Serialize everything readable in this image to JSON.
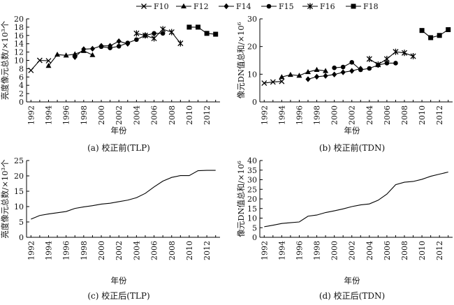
{
  "legend": [
    {
      "name": "F10",
      "marker": "x"
    },
    {
      "name": "F12",
      "marker": "triangle"
    },
    {
      "name": "F14",
      "marker": "diamond"
    },
    {
      "name": "F15",
      "marker": "circle"
    },
    {
      "name": "F16",
      "marker": "star"
    },
    {
      "name": "F18",
      "marker": "square"
    }
  ],
  "chart_data": [
    {
      "type": "line",
      "caption": "(a) 校正前(TLP)",
      "xlabel": "年份",
      "ylabel": "亮度像元总数/×10³个",
      "xlim": [
        1991.5,
        2013.5
      ],
      "ylim": [
        0,
        20
      ],
      "yticks": [
        0,
        2,
        4,
        6,
        8,
        10,
        12,
        14,
        16,
        18,
        20
      ],
      "xticks": [
        1992,
        1994,
        1996,
        1998,
        2000,
        2002,
        2004,
        2006,
        2008,
        2010,
        2012
      ],
      "series": [
        {
          "name": "F10",
          "marker": "x",
          "x": [
            1992,
            1993,
            1994
          ],
          "values": [
            7.6,
            10,
            9.9
          ]
        },
        {
          "name": "F12",
          "marker": "triangle",
          "x": [
            1994,
            1995,
            1996,
            1997,
            1998,
            1999
          ],
          "values": [
            8.7,
            11.4,
            11.2,
            11.5,
            12.3,
            11.3
          ]
        },
        {
          "name": "F14",
          "marker": "diamond",
          "x": [
            1997,
            1998,
            1999,
            2000,
            2001,
            2002,
            2003
          ],
          "values": [
            10.8,
            12.7,
            12.8,
            13.5,
            13.5,
            14.6,
            14.0
          ]
        },
        {
          "name": "F15",
          "marker": "circle",
          "x": [
            2000,
            2001,
            2002,
            2003,
            2004,
            2005,
            2006,
            2007
          ],
          "values": [
            13.3,
            13.0,
            13.4,
            14.2,
            15.0,
            16.0,
            16.5,
            16.5
          ]
        },
        {
          "name": "F16",
          "marker": "star",
          "x": [
            2004,
            2005,
            2006,
            2007,
            2008,
            2009
          ],
          "values": [
            16.5,
            16.0,
            15.3,
            17.5,
            16.8,
            14.1
          ]
        },
        {
          "name": "F18",
          "marker": "square",
          "x": [
            2010,
            2011,
            2012,
            2013
          ],
          "values": [
            18.0,
            18.0,
            16.5,
            16.3
          ]
        }
      ]
    },
    {
      "type": "line",
      "caption": "(b) 校正前(TDN)",
      "xlabel": "年份",
      "ylabel": "像元DN值总和/×10⁶",
      "xlim": [
        1991.5,
        2013.5
      ],
      "ylim": [
        0,
        30
      ],
      "yticks": [
        0,
        10,
        20,
        30
      ],
      "xticks": [
        1992,
        1994,
        1996,
        1998,
        2000,
        2002,
        2004,
        2006,
        2008,
        2010,
        2012
      ],
      "series": [
        {
          "name": "F10",
          "marker": "x",
          "x": [
            1992,
            1993,
            1994
          ],
          "values": [
            6.8,
            7.2,
            7.4
          ]
        },
        {
          "name": "F12",
          "marker": "triangle",
          "x": [
            1994,
            1995,
            1996,
            1997,
            1998,
            1999
          ],
          "values": [
            9.0,
            9.8,
            9.5,
            10.8,
            11.6,
            11.2
          ]
        },
        {
          "name": "F14",
          "marker": "diamond",
          "x": [
            1997,
            1998,
            1999,
            2000,
            2001,
            2002,
            2003
          ],
          "values": [
            8.2,
            9.1,
            9.4,
            9.9,
            10.7,
            11.2,
            12.0
          ]
        },
        {
          "name": "F15",
          "marker": "circle",
          "x": [
            2000,
            2001,
            2002,
            2003,
            2004,
            2005,
            2006,
            2007
          ],
          "values": [
            12.3,
            12.6,
            14.3,
            11.6,
            12.1,
            13.3,
            14.0,
            14.0
          ]
        },
        {
          "name": "F16",
          "marker": "star",
          "x": [
            2004,
            2005,
            2006,
            2007,
            2008,
            2009
          ],
          "values": [
            15.5,
            13.5,
            15.5,
            18.1,
            17.7,
            16.5
          ]
        },
        {
          "name": "F18",
          "marker": "square",
          "x": [
            2010,
            2011,
            2012,
            2013
          ],
          "values": [
            25.8,
            23.2,
            24.0,
            26.1
          ]
        }
      ]
    },
    {
      "type": "line",
      "caption": "(c) 校正后(TLP)",
      "xlabel": "年份",
      "ylabel": "亮度像元总数/×10³个",
      "xlim": [
        1991.5,
        2013.5
      ],
      "ylim": [
        0,
        25
      ],
      "yticks": [
        0,
        5,
        10,
        15,
        20,
        25
      ],
      "xticks": [
        1992,
        1994,
        1996,
        1998,
        2000,
        2002,
        2004,
        2006,
        2008,
        2010,
        2012
      ],
      "series": [
        {
          "marker": "none",
          "x": [
            1992,
            1993,
            1994,
            1995,
            1996,
            1997,
            1998,
            1999,
            2000,
            2001,
            2002,
            2003,
            2004,
            2005,
            2006,
            2007,
            2008,
            2009,
            2010,
            2011,
            2012,
            2013
          ],
          "values": [
            5.9,
            7.1,
            7.6,
            8.0,
            8.4,
            9.4,
            9.9,
            10.3,
            10.8,
            11.1,
            11.6,
            12.1,
            12.9,
            14.3,
            16.4,
            18.3,
            19.5,
            20.1,
            20.1,
            21.7,
            21.8,
            21.8
          ]
        }
      ]
    },
    {
      "type": "line",
      "caption": "(d) 校正后(TDN)",
      "xlabel": "年份",
      "ylabel": "像元DN值总和/×10⁶",
      "xlim": [
        1991.5,
        2013.5
      ],
      "ylim": [
        0,
        40
      ],
      "yticks": [
        0,
        5,
        10,
        15,
        20,
        25,
        30,
        35,
        40
      ],
      "xticks": [
        1992,
        1994,
        1996,
        1998,
        2000,
        2002,
        2004,
        2006,
        2008,
        2010,
        2012
      ],
      "series": [
        {
          "marker": "none",
          "x": [
            1992,
            1993,
            1994,
            1995,
            1996,
            1997,
            1998,
            1999,
            2000,
            2001,
            2002,
            2003,
            2004,
            2005,
            2006,
            2007,
            2008,
            2009,
            2010,
            2011,
            2012,
            2013
          ],
          "values": [
            5.5,
            6.3,
            7.2,
            7.6,
            8.0,
            11.0,
            11.6,
            12.9,
            13.8,
            14.8,
            16.0,
            16.9,
            17.4,
            19.3,
            22.5,
            27.4,
            28.7,
            29.1,
            30.2,
            31.8,
            32.9,
            34.0
          ]
        }
      ]
    }
  ]
}
